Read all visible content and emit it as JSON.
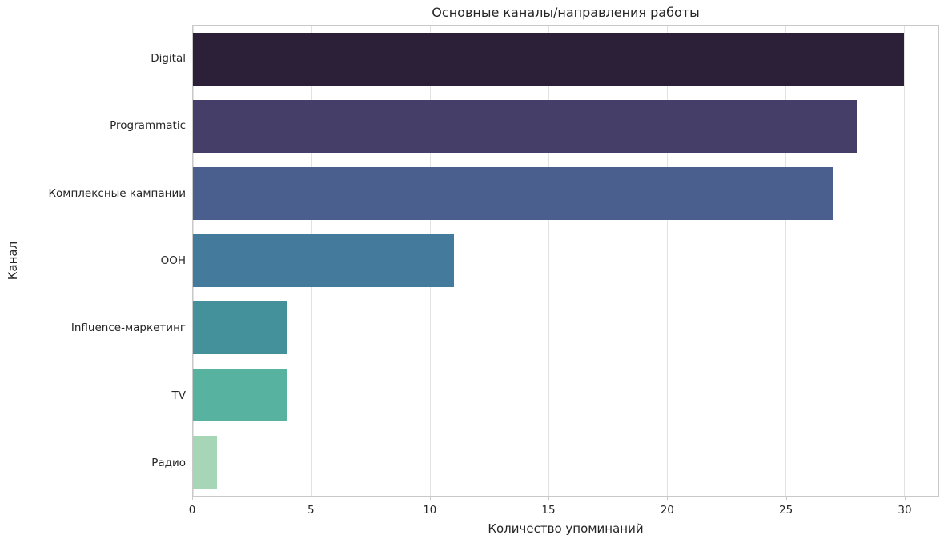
{
  "chart_data": {
    "type": "bar",
    "orientation": "horizontal",
    "title": "Основные каналы/направления работы",
    "xlabel": "Количество упоминаний",
    "ylabel": "Канал",
    "categories": [
      "Digital",
      "Programmatic",
      "Комплексные кампании",
      "OOH",
      "Influence-маркетинг",
      "TV",
      "Радио"
    ],
    "values": [
      30,
      28,
      27,
      11,
      4,
      4,
      1
    ],
    "bar_colors": [
      "#2b2038",
      "#453e68",
      "#4a5f8e",
      "#447a9c",
      "#44919b",
      "#57b2a0",
      "#a6d6b5"
    ],
    "xticks": [
      0,
      5,
      10,
      15,
      20,
      25,
      30
    ],
    "xlim": [
      0,
      31.45
    ],
    "grid": true,
    "legend": false
  },
  "colors": {
    "background": "#ffffff",
    "grid": "#e2e2e2",
    "spine": "#c9c9c9",
    "text": "#262626"
  }
}
